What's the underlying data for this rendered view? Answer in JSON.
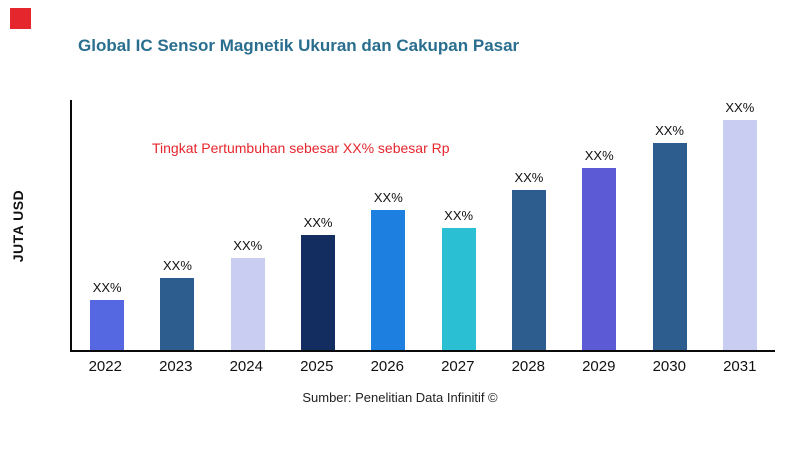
{
  "theme": {
    "accent_red": "#e5262d",
    "title_color": "#2a6e8f",
    "axis_color": "#0a0a0a"
  },
  "source": "Sumber: Penelitian Data Infinitif ©",
  "chart_data": {
    "type": "bar",
    "title": "Global IC Sensor Magnetik Ukuran dan Cakupan Pasar",
    "ylabel": "JUTA USD",
    "xlabel": "",
    "annotation": "Tingkat Pertumbuhan sebesar XX% sebesar Rp",
    "categories": [
      "2022",
      "2023",
      "2024",
      "2025",
      "2026",
      "2027",
      "2028",
      "2029",
      "2030",
      "2031"
    ],
    "values": [
      20,
      29,
      37,
      46,
      56,
      49,
      64,
      73,
      83,
      92
    ],
    "bar_labels": [
      "XX%",
      "XX%",
      "XX%",
      "XX%",
      "XX%",
      "XX%",
      "XX%",
      "XX%",
      "XX%",
      "XX%"
    ],
    "colors": [
      "#5667e2",
      "#2d5d8e",
      "#c9cdf2",
      "#142d61",
      "#1d7fe0",
      "#2bbfd4",
      "#2d5d8e",
      "#5d5ad6",
      "#2d5d8e",
      "#c9cdf2"
    ],
    "ylim": [
      0,
      100
    ],
    "grid": false,
    "legend": "none"
  }
}
